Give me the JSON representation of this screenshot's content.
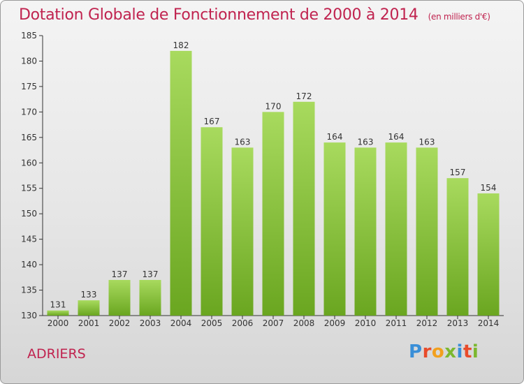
{
  "title": "Dotation Globale de Fonctionnement de 2000 à 2014",
  "unit": "(en milliers d'€)",
  "commune": "ADRIERS",
  "logo": {
    "text": "Proxiti",
    "colors": [
      "#3a8fd8",
      "#e84b2a",
      "#f2a01e",
      "#7cb82f",
      "#3a8fd8",
      "#e84b2a",
      "#7cb82f"
    ]
  },
  "colors": {
    "bar_light": "#a6d85c",
    "bar_dark": "#6aa820",
    "title": "#c0234f"
  },
  "chart_data": {
    "type": "bar",
    "categories": [
      "2000",
      "2001",
      "2002",
      "2003",
      "2004",
      "2005",
      "2006",
      "2007",
      "2008",
      "2009",
      "2010",
      "2011",
      "2012",
      "2013",
      "2014"
    ],
    "values": [
      131,
      133,
      137,
      137,
      182,
      167,
      163,
      170,
      172,
      164,
      163,
      164,
      163,
      157,
      154
    ],
    "title": "Dotation Globale de Fonctionnement de 2000 à 2014",
    "xlabel": "",
    "ylabel": "",
    "ylim": [
      130,
      185
    ],
    "yticks": [
      130,
      135,
      140,
      145,
      150,
      155,
      160,
      165,
      170,
      175,
      180,
      185
    ],
    "grid": false,
    "data_labels": true
  }
}
